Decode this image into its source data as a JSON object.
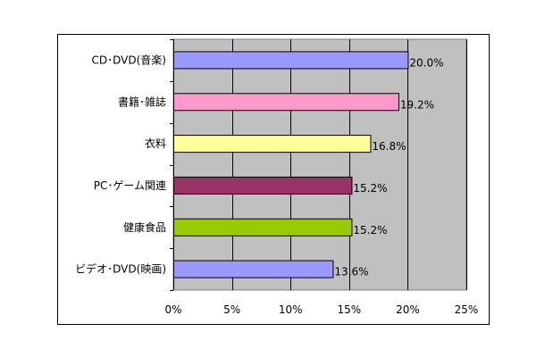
{
  "chart_data": {
    "type": "bar",
    "orientation": "horizontal",
    "categories": [
      "CD･DVD(音楽)",
      "書籍･雑誌",
      "衣料",
      "PC･ゲーム関連",
      "健康食品",
      "ビデオ･DVD(映画)"
    ],
    "values": [
      20.0,
      19.2,
      16.8,
      15.2,
      15.2,
      13.6
    ],
    "value_labels": [
      "20.0%",
      "19.2%",
      "16.8%",
      "15.2%",
      "15.2%",
      "13.6%"
    ],
    "bar_colors": [
      "#9999ff",
      "#ff99cc",
      "#ffff99",
      "#993366",
      "#99cc00",
      "#9999ff"
    ],
    "xlim": [
      0,
      25
    ],
    "x_ticks": [
      0,
      5,
      10,
      15,
      20,
      25
    ],
    "x_tick_labels": [
      "0%",
      "5%",
      "10%",
      "15%",
      "20%",
      "25%"
    ],
    "plot_background": "#c0c0c0",
    "grid": true,
    "legend": "none"
  }
}
